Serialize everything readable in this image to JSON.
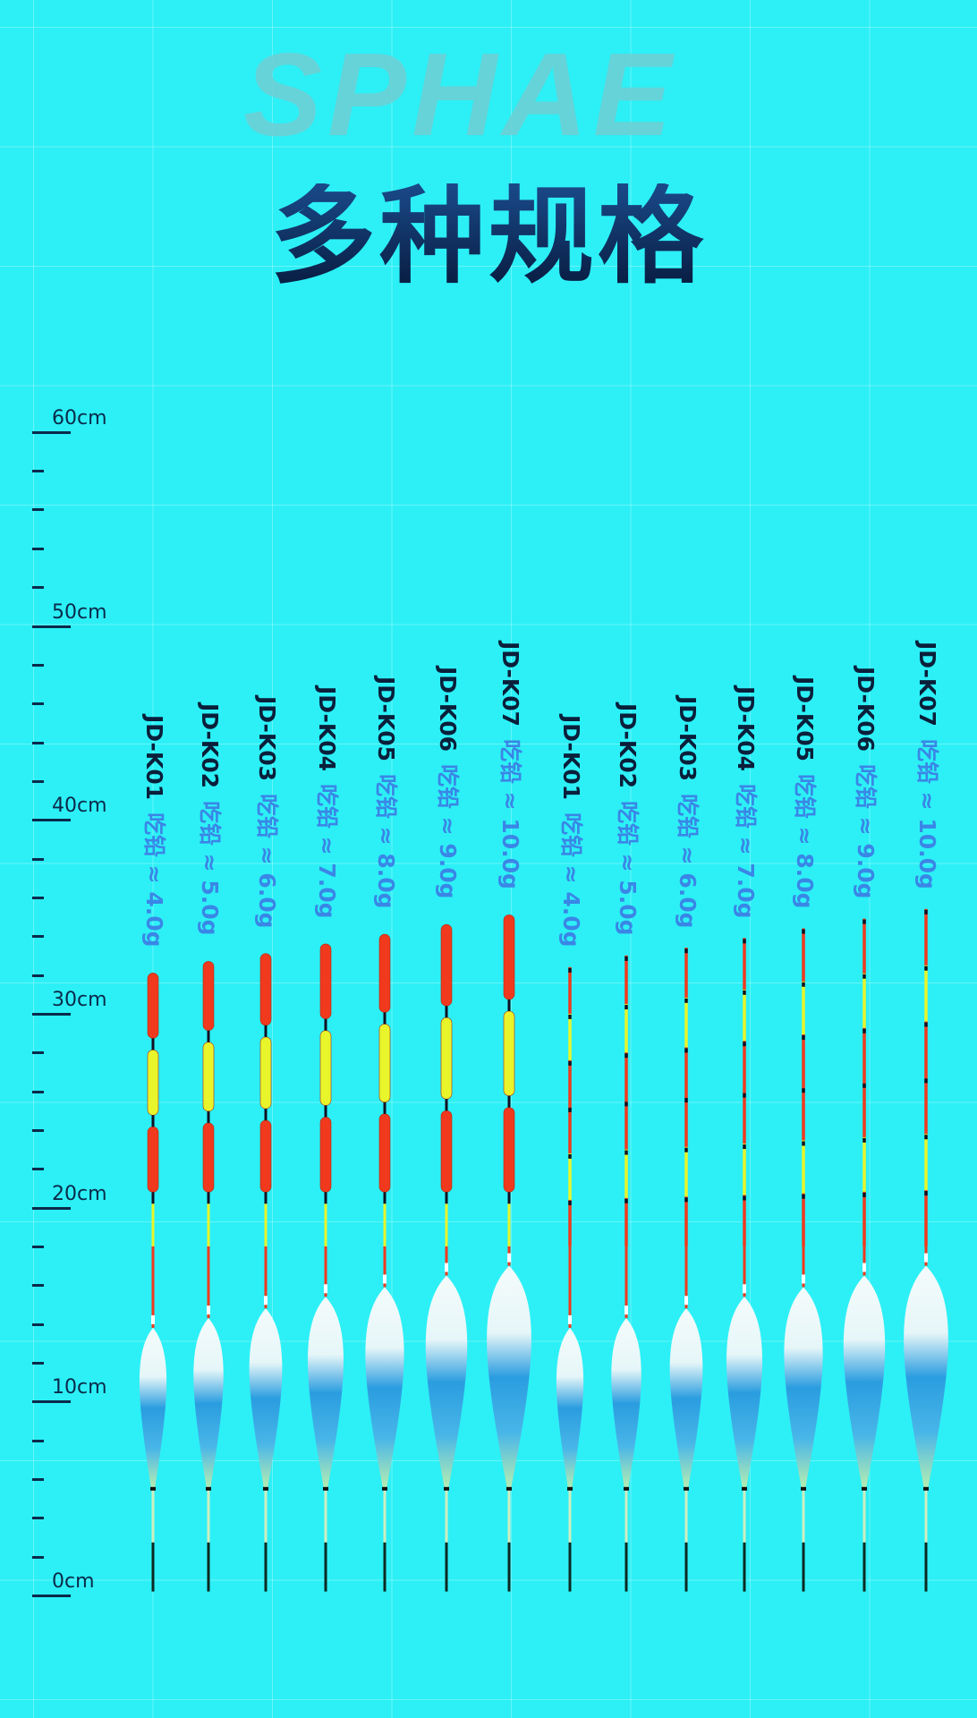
{
  "watermark": "SPHAE",
  "title": "多种规格",
  "ruler": {
    "unit": "cm",
    "labels": [
      "60cm",
      "50cm",
      "40cm",
      "30cm",
      "20cm",
      "10cm",
      "0cm"
    ],
    "values": [
      60,
      50,
      40,
      30,
      20,
      10,
      0
    ]
  },
  "colors": {
    "background": "#2cf0f6",
    "title": "#0b2e63",
    "model": "#0a1f3a",
    "lead": "#3a86e6",
    "red": "#f0391d",
    "yellow": "#e8f52a"
  },
  "floats": [
    {
      "model": "JD-K01",
      "lead": "吃铅 ≈ 4.0g",
      "top_cm": 32.4,
      "body_top_cm": 13.8,
      "style": "thick"
    },
    {
      "model": "JD-K02",
      "lead": "吃铅 ≈ 5.0g",
      "top_cm": 33.0,
      "body_top_cm": 14.3,
      "style": "thick"
    },
    {
      "model": "JD-K03",
      "lead": "吃铅 ≈ 6.0g",
      "top_cm": 33.4,
      "body_top_cm": 14.8,
      "style": "thick"
    },
    {
      "model": "JD-K04",
      "lead": "吃铅 ≈ 7.0g",
      "top_cm": 33.9,
      "body_top_cm": 15.4,
      "style": "thick"
    },
    {
      "model": "JD-K05",
      "lead": "吃铅 ≈ 8.0g",
      "top_cm": 34.4,
      "body_top_cm": 15.9,
      "style": "thick"
    },
    {
      "model": "JD-K06",
      "lead": "吃铅 ≈ 9.0g",
      "top_cm": 34.9,
      "body_top_cm": 16.5,
      "style": "thick"
    },
    {
      "model": "JD-K07",
      "lead": "吃铅 ≈ 10.0g",
      "top_cm": 35.4,
      "body_top_cm": 17.0,
      "style": "thick"
    },
    {
      "model": "JD-K01",
      "lead": "吃铅 ≈ 4.0g",
      "top_cm": 32.4,
      "body_top_cm": 13.8,
      "style": "thin"
    },
    {
      "model": "JD-K02",
      "lead": "吃铅 ≈ 5.0g",
      "top_cm": 33.0,
      "body_top_cm": 14.3,
      "style": "thin"
    },
    {
      "model": "JD-K03",
      "lead": "吃铅 ≈ 6.0g",
      "top_cm": 33.4,
      "body_top_cm": 14.8,
      "style": "thin"
    },
    {
      "model": "JD-K04",
      "lead": "吃铅 ≈ 7.0g",
      "top_cm": 33.9,
      "body_top_cm": 15.4,
      "style": "thin"
    },
    {
      "model": "JD-K05",
      "lead": "吃铅 ≈ 8.0g",
      "top_cm": 34.4,
      "body_top_cm": 15.9,
      "style": "thin"
    },
    {
      "model": "JD-K06",
      "lead": "吃铅 ≈ 9.0g",
      "top_cm": 34.9,
      "body_top_cm": 16.5,
      "style": "thin"
    },
    {
      "model": "JD-K07",
      "lead": "吃铅 ≈ 10.0g",
      "top_cm": 35.4,
      "body_top_cm": 17.0,
      "style": "thin"
    }
  ]
}
